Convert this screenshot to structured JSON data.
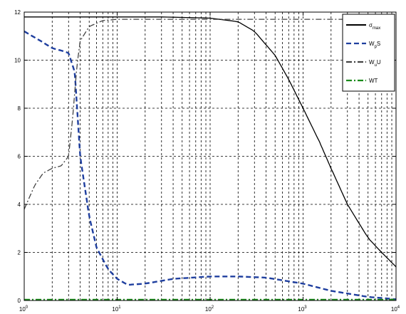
{
  "chart_data": {
    "type": "line",
    "title": "",
    "xlabel": "",
    "ylabel": "",
    "x_scale": "log",
    "xlim": [
      1,
      10000
    ],
    "ylim": [
      0,
      12
    ],
    "grid": true,
    "legend_position": "top-right",
    "x_ticks": [
      {
        "base": "10",
        "exp": "0"
      },
      {
        "base": "10",
        "exp": "1"
      },
      {
        "base": "10",
        "exp": "2"
      },
      {
        "base": "10",
        "exp": "3"
      },
      {
        "base": "10",
        "exp": "4"
      }
    ],
    "y_ticks": [
      "0",
      "2",
      "4",
      "6",
      "8",
      "10",
      "12"
    ],
    "series": [
      {
        "name": "σ_max",
        "legend_main": "σ",
        "legend_sub": "max",
        "color": "#000000",
        "style": "solid",
        "x": [
          1,
          3,
          10,
          30,
          100,
          200,
          300,
          500,
          700,
          1000,
          1500,
          2000,
          3000,
          5000,
          7000,
          10000
        ],
        "y": [
          11.8,
          11.8,
          11.8,
          11.8,
          11.75,
          11.6,
          11.2,
          10.2,
          9.2,
          8.0,
          6.6,
          5.5,
          4.0,
          2.6,
          2.0,
          1.4
        ]
      },
      {
        "name": "W_pS",
        "legend_main": "W",
        "legend_sub": "p",
        "legend_suffix": "S",
        "color": "#1f3f9f",
        "style": "dash",
        "x": [
          1,
          1.5,
          2,
          2.5,
          3,
          3.5,
          4,
          5,
          6,
          8,
          10,
          13,
          20,
          40,
          100,
          200,
          400,
          1000,
          2000,
          5000,
          10000
        ],
        "y": [
          11.2,
          10.8,
          10.5,
          10.4,
          10.3,
          9.5,
          6.0,
          3.5,
          2.2,
          1.3,
          0.9,
          0.65,
          0.7,
          0.9,
          1.0,
          1.0,
          0.95,
          0.7,
          0.4,
          0.15,
          0.05
        ]
      },
      {
        "name": "W_uU",
        "legend_main": "W",
        "legend_sub": "u",
        "legend_suffix": "U",
        "color": "#444444",
        "style": "dashdot",
        "x": [
          1,
          1.3,
          1.6,
          2,
          2.5,
          3,
          3.3,
          3.7,
          4,
          5,
          7,
          10,
          20,
          100,
          1000,
          10000
        ],
        "y": [
          3.8,
          4.8,
          5.3,
          5.5,
          5.6,
          6.0,
          7.5,
          9.8,
          10.8,
          11.4,
          11.65,
          11.7,
          11.7,
          11.7,
          11.7,
          11.7
        ]
      },
      {
        "name": "WT",
        "legend_main": "WT",
        "color": "#1a8a1a",
        "style": "dashdot",
        "x": [
          1,
          10000
        ],
        "y": [
          0.03,
          0.03
        ]
      }
    ]
  }
}
